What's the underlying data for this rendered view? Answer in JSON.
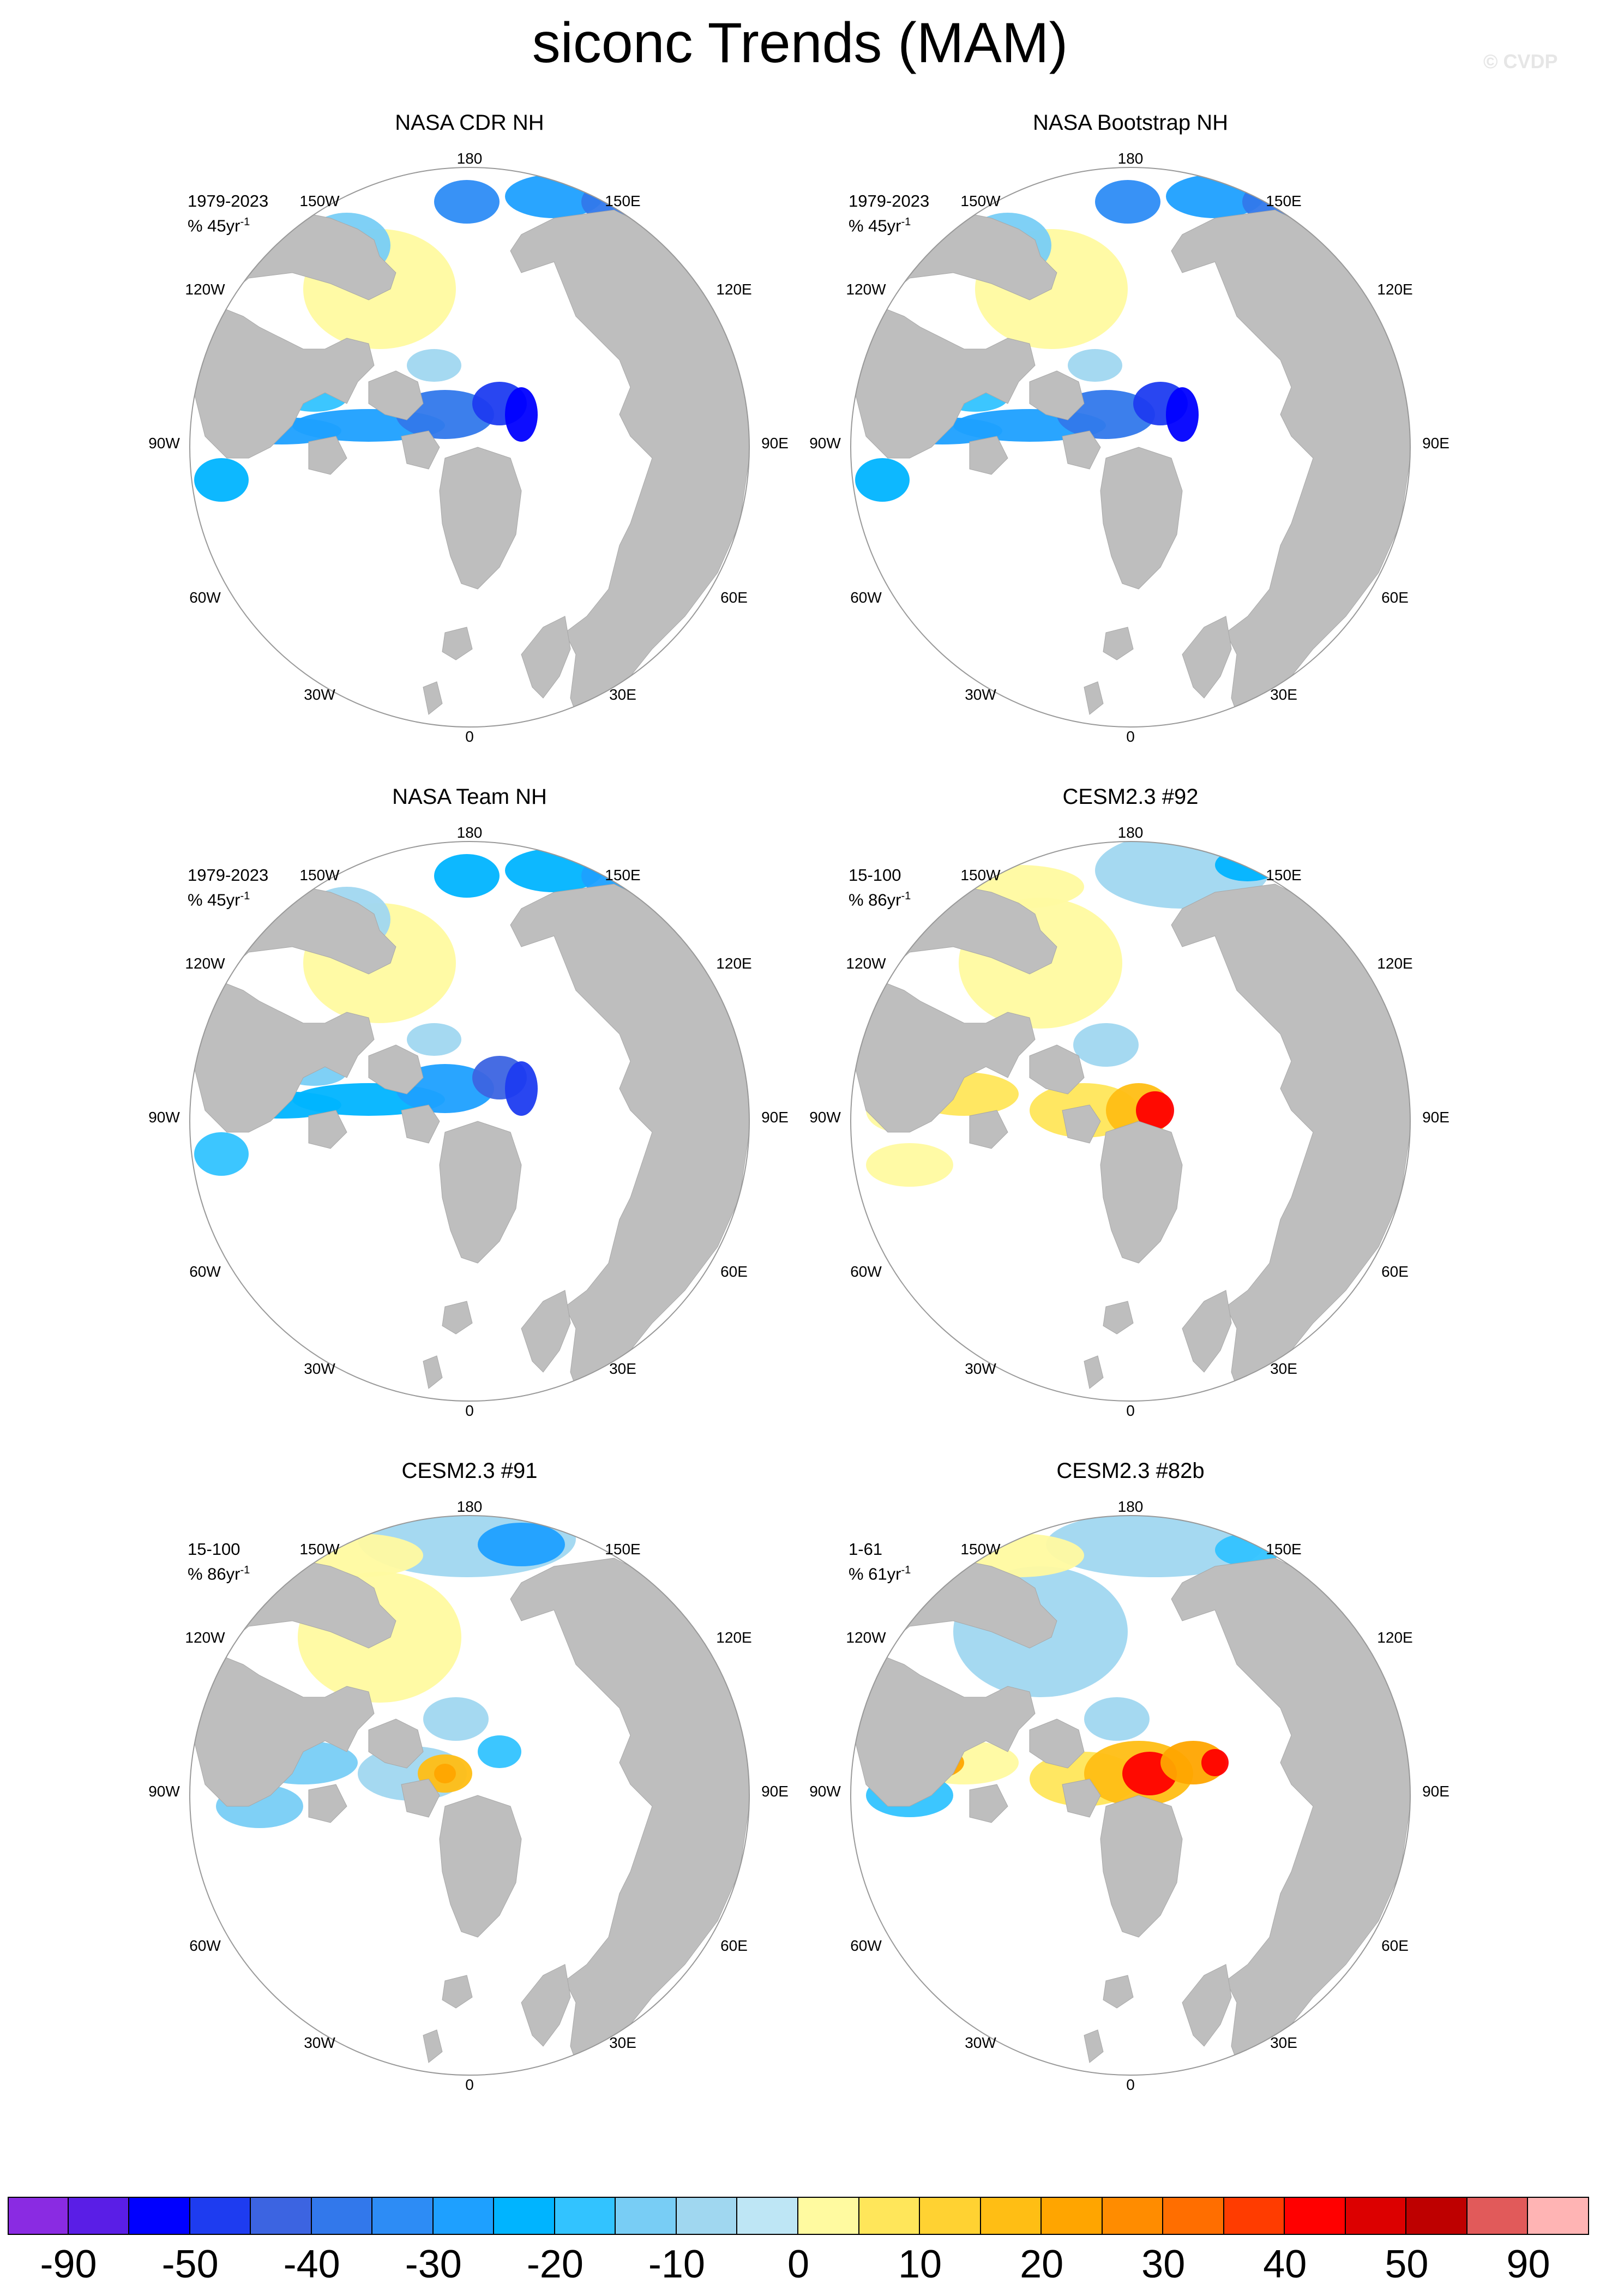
{
  "title": "siconc Trends (MAM)",
  "watermark": "© CVDP",
  "longitude_labels": [
    "180",
    "150E",
    "120E",
    "90E",
    "60E",
    "30E",
    "0",
    "30W",
    "60W",
    "90W",
    "120W",
    "150W"
  ],
  "panels": [
    {
      "title": "NASA CDR NH",
      "period": "1979-2023",
      "units": "% 45yr",
      "units_exp": "-1"
    },
    {
      "title": "NASA Bootstrap NH",
      "period": "1979-2023",
      "units": "% 45yr",
      "units_exp": "-1"
    },
    {
      "title": "NASA Team NH",
      "period": "1979-2023",
      "units": "% 45yr",
      "units_exp": "-1"
    },
    {
      "title": "CESM2.3 #92",
      "period": "15-100",
      "units": "% 86yr",
      "units_exp": "-1"
    },
    {
      "title": "CESM2.3 #91",
      "period": "15-100",
      "units": "% 86yr",
      "units_exp": "-1"
    },
    {
      "title": "CESM2.3 #82b",
      "period": "1-61",
      "units": "% 61yr",
      "units_exp": "-1"
    }
  ],
  "colorbar": {
    "colors": [
      "#8a2be2",
      "#5a1ee6",
      "#0000ff",
      "#1e3cf0",
      "#3c64e1",
      "#3278eb",
      "#2d8cf5",
      "#1ea0ff",
      "#00b4ff",
      "#32c3ff",
      "#78cdf5",
      "#a0d7f0",
      "#bee6f5",
      "#fffaa0",
      "#ffe65a",
      "#ffd232",
      "#ffbe14",
      "#ffa500",
      "#ff8c00",
      "#ff6e00",
      "#ff3c00",
      "#ff0000",
      "#dc0000",
      "#be0000",
      "#e15a5a",
      "#ffb4b4"
    ],
    "labels": [
      "-90",
      "-50",
      "-40",
      "-30",
      "-20",
      "-10",
      "0",
      "10",
      "20",
      "30",
      "40",
      "50",
      "90"
    ]
  },
  "colors": {
    "land": "#bebebe",
    "ocean": "#ffffff",
    "border": "#999999"
  }
}
